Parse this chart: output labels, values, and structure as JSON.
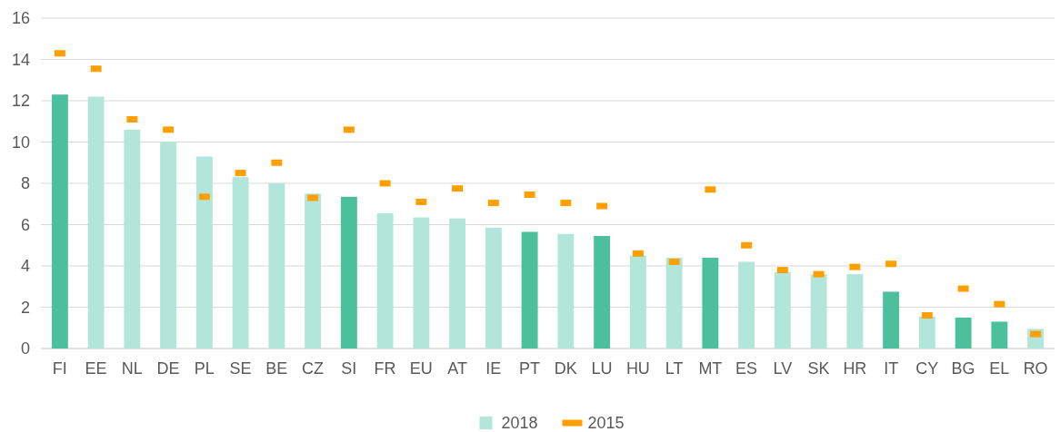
{
  "chart_data": {
    "type": "bar",
    "categories": [
      "FI",
      "EE",
      "NL",
      "DE",
      "PL",
      "SE",
      "BE",
      "CZ",
      "SI",
      "FR",
      "EU",
      "AT",
      "IE",
      "PT",
      "DK",
      "LU",
      "HU",
      "LT",
      "MT",
      "ES",
      "LV",
      "SK",
      "HR",
      "IT",
      "CY",
      "BG",
      "EL",
      "RO"
    ],
    "series": [
      {
        "name": "2018",
        "type": "bar",
        "color": "#b3e6da",
        "colors": [
          "#4cbf9c",
          "#b3e6da",
          "#b3e6da",
          "#b3e6da",
          "#b3e6da",
          "#b3e6da",
          "#b3e6da",
          "#b3e6da",
          "#4cbf9c",
          "#b3e6da",
          "#b3e6da",
          "#b3e6da",
          "#b3e6da",
          "#4cbf9c",
          "#b3e6da",
          "#4cbf9c",
          "#b3e6da",
          "#b3e6da",
          "#4cbf9c",
          "#b3e6da",
          "#b3e6da",
          "#b3e6da",
          "#b3e6da",
          "#4cbf9c",
          "#b3e6da",
          "#4cbf9c",
          "#4cbf9c",
          "#b3e6da"
        ],
        "values": [
          12.3,
          12.2,
          10.6,
          10.0,
          9.3,
          8.3,
          8.0,
          7.5,
          7.35,
          6.55,
          6.35,
          6.3,
          5.85,
          5.65,
          5.55,
          5.45,
          4.5,
          4.4,
          4.4,
          4.2,
          3.7,
          3.6,
          3.6,
          2.75,
          1.55,
          1.5,
          1.3,
          0.95
        ]
      },
      {
        "name": "2015",
        "type": "scatter",
        "color": "#ffa000",
        "x": [
          "FI",
          "EE",
          "NL",
          "DE",
          "PL",
          "SE",
          "BE",
          "CZ",
          "SI",
          "FR",
          "EU",
          "AT",
          "IE",
          "PT",
          "DK",
          "LU",
          "HU",
          "LT",
          "MT",
          "ES",
          "LV",
          "SK",
          "HR",
          "IT",
          "CY",
          "BG",
          "EL",
          "RO"
        ],
        "values": [
          14.3,
          13.55,
          11.1,
          10.6,
          7.35,
          8.5,
          9.0,
          7.3,
          10.6,
          8.0,
          7.1,
          7.75,
          7.05,
          7.45,
          7.05,
          6.9,
          4.6,
          4.2,
          7.7,
          5.0,
          3.8,
          3.6,
          3.95,
          4.1,
          1.6,
          2.9,
          2.15,
          0.7
        ]
      }
    ],
    "ylim": [
      0,
      16
    ],
    "yticks": [
      0,
      2,
      4,
      6,
      8,
      10,
      12,
      14,
      16
    ],
    "grid": "y",
    "legend": "bottom"
  }
}
